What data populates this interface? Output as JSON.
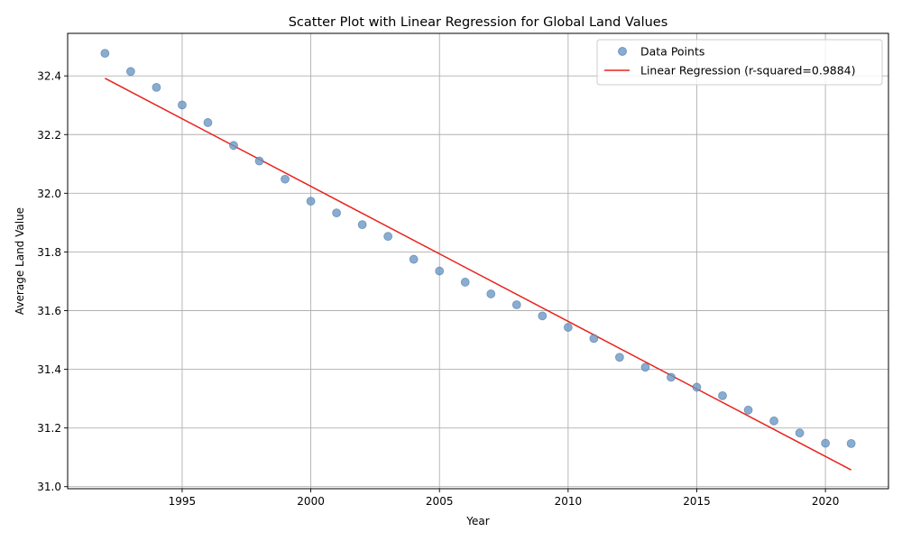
{
  "chart_data": {
    "type": "scatter",
    "title": "Scatter Plot with Linear Regression for Global Land Values",
    "xlabel": "Year",
    "ylabel": "Average Land Value",
    "xlim": [
      1990.55,
      2022.45
    ],
    "ylim": [
      30.993,
      32.545
    ],
    "xticks": [
      1995,
      2000,
      2005,
      2010,
      2015,
      2020
    ],
    "yticks": [
      31.0,
      31.2,
      31.4,
      31.6,
      31.8,
      32.0,
      32.2,
      32.4
    ],
    "grid": true,
    "legend_position": "top-right",
    "series": [
      {
        "name": "Data Points",
        "kind": "scatter",
        "color": "#6c97c4",
        "x": [
          1992,
          1993,
          1994,
          1995,
          1996,
          1997,
          1998,
          1999,
          2000,
          2001,
          2002,
          2003,
          2004,
          2005,
          2006,
          2007,
          2008,
          2009,
          2010,
          2011,
          2012,
          2013,
          2014,
          2015,
          2016,
          2017,
          2018,
          2019,
          2020,
          2021
        ],
        "y": [
          32.477,
          32.415,
          32.361,
          32.301,
          32.241,
          32.163,
          32.11,
          32.048,
          31.973,
          31.933,
          31.893,
          31.853,
          31.775,
          31.735,
          31.697,
          31.657,
          31.62,
          31.582,
          31.543,
          31.505,
          31.441,
          31.407,
          31.373,
          31.339,
          31.31,
          31.261,
          31.224,
          31.183,
          31.148,
          31.147
        ]
      },
      {
        "name": "Linear Regression (r-squared=0.9884)",
        "kind": "line",
        "color": "#e8221b",
        "x": [
          1992,
          2021
        ],
        "y": [
          32.392,
          31.057
        ]
      }
    ]
  }
}
